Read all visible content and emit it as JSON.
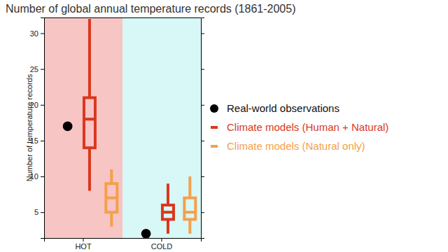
{
  "chart_data": {
    "type": "box",
    "title": "Number of global annual temperature records (1861-2005)",
    "y_label": "Number of temperature records",
    "categories": [
      "HOT",
      "COLD"
    ],
    "series": [
      {
        "name": "Real-world observations",
        "type": "scatter",
        "marker": "circle",
        "color": "#000000",
        "values": [
          17,
          2
        ]
      },
      {
        "name": "Climate models (Human + Natural)",
        "type": "box",
        "color": "#d9381e",
        "values": [
          {
            "min": 8,
            "q1": 14,
            "median": 18,
            "q3": 21,
            "max": 32
          },
          {
            "min": 2,
            "q1": 4,
            "median": 5,
            "q3": 6,
            "max": 9
          }
        ]
      },
      {
        "name": "Climate models (Natural only)",
        "type": "box",
        "color": "#f4a04c",
        "values": [
          {
            "min": 3,
            "q1": 5,
            "median": 7,
            "q3": 9,
            "max": 11
          },
          {
            "min": 2,
            "q1": 4,
            "median": 5,
            "q3": 7,
            "max": 10
          }
        ]
      }
    ],
    "ylim": [
      1.4,
      32.2
    ],
    "yticks": [
      5,
      10,
      15,
      20,
      25,
      30
    ],
    "grid": false,
    "legend": "right"
  }
}
